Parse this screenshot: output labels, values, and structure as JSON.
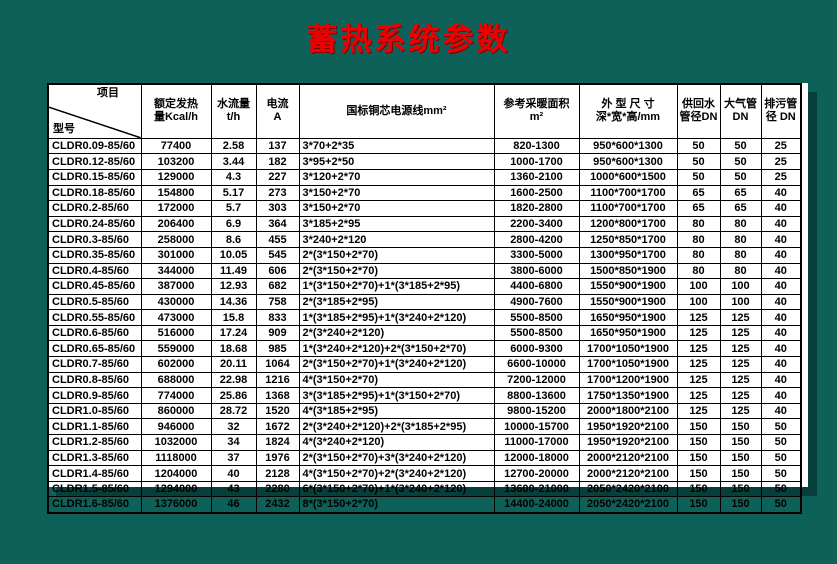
{
  "page": {
    "title": "蓄热系统参数"
  },
  "colors": {
    "background": "#0d6159",
    "title": "#ee0000",
    "sheet": "#ffffff",
    "border": "#000000",
    "shadow": "#083f3a"
  },
  "table": {
    "corner": {
      "top_right": "项目",
      "bottom_left": "型号"
    },
    "headers": [
      "额定发热\n量Kcal/h",
      "水流量\nt/h",
      "电流\nA",
      "国标铜芯电源线mm²",
      "参考采暖面积\nm²",
      "外 型 尺 寸\n深*宽*高/mm",
      "供回水\n管径DN",
      "大气管\nDN",
      "排污管\n径 DN"
    ],
    "rows": [
      [
        "CLDR0.09-85/60",
        "77400",
        "2.58",
        "137",
        "3*70+2*35",
        "820-1300",
        "950*600*1300",
        "50",
        "50",
        "25"
      ],
      [
        "CLDR0.12-85/60",
        "103200",
        "3.44",
        "182",
        "3*95+2*50",
        "1000-1700",
        "950*600*1300",
        "50",
        "50",
        "25"
      ],
      [
        "CLDR0.15-85/60",
        "129000",
        "4.3",
        "227",
        "3*120+2*70",
        "1360-2100",
        "1000*600*1500",
        "50",
        "50",
        "25"
      ],
      [
        "CLDR0.18-85/60",
        "154800",
        "5.17",
        "273",
        "3*150+2*70",
        "1600-2500",
        "1100*700*1700",
        "65",
        "65",
        "40"
      ],
      [
        "CLDR0.2-85/60",
        "172000",
        "5.7",
        "303",
        "3*150+2*70",
        "1820-2800",
        "1100*700*1700",
        "65",
        "65",
        "40"
      ],
      [
        "CLDR0.24-85/60",
        "206400",
        "6.9",
        "364",
        "3*185+2*95",
        "2200-3400",
        "1200*800*1700",
        "80",
        "80",
        "40"
      ],
      [
        "CLDR0.3-85/60",
        "258000",
        "8.6",
        "455",
        "3*240+2*120",
        "2800-4200",
        "1250*850*1700",
        "80",
        "80",
        "40"
      ],
      [
        "CLDR0.35-85/60",
        "301000",
        "10.05",
        "545",
        "2*(3*150+2*70)",
        "3300-5000",
        "1300*950*1700",
        "80",
        "80",
        "40"
      ],
      [
        "CLDR0.4-85/60",
        "344000",
        "11.49",
        "606",
        "2*(3*150+2*70)",
        "3800-6000",
        "1500*850*1900",
        "80",
        "80",
        "40"
      ],
      [
        "CLDR0.45-85/60",
        "387000",
        "12.93",
        "682",
        "1*(3*150+2*70)+1*(3*185+2*95)",
        "4400-6800",
        "1550*900*1900",
        "100",
        "100",
        "40"
      ],
      [
        "CLDR0.5-85/60",
        "430000",
        "14.36",
        "758",
        "2*(3*185+2*95)",
        "4900-7600",
        "1550*900*1900",
        "100",
        "100",
        "40"
      ],
      [
        "CLDR0.55-85/60",
        "473000",
        "15.8",
        "833",
        "1*(3*185+2*95)+1*(3*240+2*120)",
        "5500-8500",
        "1650*950*1900",
        "125",
        "125",
        "40"
      ],
      [
        "CLDR0.6-85/60",
        "516000",
        "17.24",
        "909",
        "2*(3*240+2*120)",
        "5500-8500",
        "1650*950*1900",
        "125",
        "125",
        "40"
      ],
      [
        "CLDR0.65-85/60",
        "559000",
        "18.68",
        "985",
        "1*(3*240+2*120)+2*(3*150+2*70)",
        "6000-9300",
        "1700*1050*1900",
        "125",
        "125",
        "40"
      ],
      [
        "CLDR0.7-85/60",
        "602000",
        "20.11",
        "1064",
        "2*(3*150+2*70)+1*(3*240+2*120)",
        "6600-10000",
        "1700*1050*1900",
        "125",
        "125",
        "40"
      ],
      [
        "CLDR0.8-85/60",
        "688000",
        "22.98",
        "1216",
        "4*(3*150+2*70)",
        "7200-12000",
        "1700*1200*1900",
        "125",
        "125",
        "40"
      ],
      [
        "CLDR0.9-85/60",
        "774000",
        "25.86",
        "1368",
        "3*(3*185+2*95)+1*(3*150+2*70)",
        "8800-13600",
        "1750*1350*1900",
        "125",
        "125",
        "40"
      ],
      [
        "CLDR1.0-85/60",
        "860000",
        "28.72",
        "1520",
        "4*(3*185+2*95)",
        "9800-15200",
        "2000*1800*2100",
        "125",
        "125",
        "40"
      ],
      [
        "CLDR1.1-85/60",
        "946000",
        "32",
        "1672",
        "2*(3*240+2*120)+2*(3*185+2*95)",
        "10000-15700",
        "1950*1920*2100",
        "150",
        "150",
        "50"
      ],
      [
        "CLDR1.2-85/60",
        "1032000",
        "34",
        "1824",
        "4*(3*240+2*120)",
        "11000-17000",
        "1950*1920*2100",
        "150",
        "150",
        "50"
      ],
      [
        "CLDR1.3-85/60",
        "1118000",
        "37",
        "1976",
        "2*(3*150+2*70)+3*(3*240+2*120)",
        "12000-18000",
        "2000*2120*2100",
        "150",
        "150",
        "50"
      ],
      [
        "CLDR1.4-85/60",
        "1204000",
        "40",
        "2128",
        "4*(3*150+2*70)+2*(3*240+2*120)",
        "12700-20000",
        "2000*2120*2100",
        "150",
        "150",
        "50"
      ],
      [
        "CLDR1.5-85/60",
        "1294000",
        "43",
        "2280",
        "6*(3*150+2*70)+1*(3*240+2*120)",
        "13600-21000",
        "2050*2420*2100",
        "150",
        "150",
        "50"
      ],
      [
        "CLDR1.6-85/60",
        "1376000",
        "46",
        "2432",
        "8*(3*150+2*70)",
        "14400-24000",
        "2050*2420*2100",
        "150",
        "150",
        "50"
      ]
    ]
  }
}
